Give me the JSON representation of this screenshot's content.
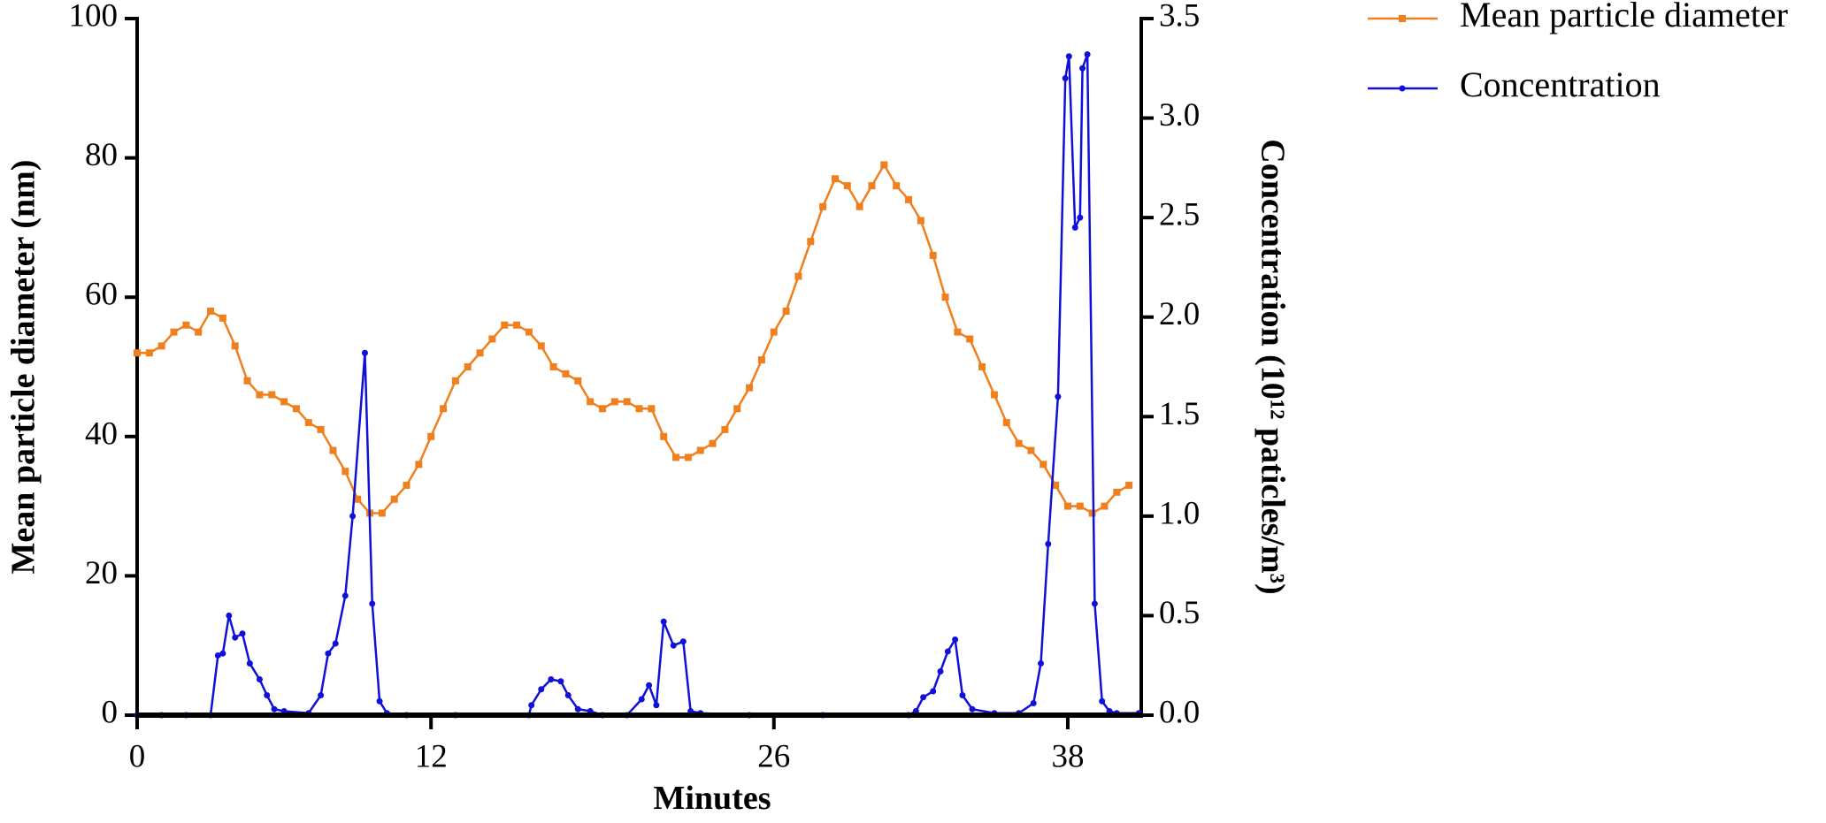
{
  "chart_data": {
    "type": "line",
    "xlabel": "Minutes",
    "ylabel": "Mean particle diameter (nm)",
    "y2label": "Concentration (10¹² paticles/m³)",
    "xlim": [
      0,
      41
    ],
    "xticks": [
      0,
      12,
      26,
      38
    ],
    "ylim": [
      0,
      100
    ],
    "yticks": [
      0,
      20,
      40,
      60,
      80,
      100
    ],
    "y2lim": [
      0,
      3.5
    ],
    "y2ticks": [
      {
        "value": 0,
        "label": "0.0"
      },
      0.5,
      {
        "value": 1,
        "label": "1.0"
      },
      1.5,
      {
        "value": 2,
        "label": "2.0"
      },
      2.5,
      {
        "value": 3,
        "label": "3.0"
      },
      3.5
    ],
    "legend": "top-right",
    "series": [
      {
        "name": "Mean particle diameter",
        "color": "#f07f1e",
        "x": [
          0,
          0.5,
          1,
          1.5,
          2,
          2.5,
          3,
          3.5,
          4,
          4.5,
          5,
          5.5,
          6,
          6.5,
          7,
          7.5,
          8,
          8.5,
          9,
          9.5,
          10,
          10.5,
          11,
          11.5,
          12,
          12.5,
          13,
          13.5,
          14,
          14.5,
          15,
          15.5,
          16,
          16.5,
          17,
          17.5,
          18,
          18.5,
          19,
          19.5,
          20,
          20.5,
          21,
          21.5,
          22,
          22.5,
          23,
          23.5,
          24,
          24.5,
          25,
          25.5,
          26,
          26.5,
          27,
          27.5,
          28,
          28.5,
          29,
          29.5,
          30,
          30.5,
          31,
          31.5,
          32,
          32.5,
          33,
          33.5,
          34,
          34.5,
          35,
          35.5,
          36,
          36.5,
          37,
          37.5,
          38,
          38.5,
          39,
          39.5,
          40,
          40.5
        ],
        "values": [
          52,
          52,
          53,
          55,
          56,
          55,
          58,
          57,
          53,
          48,
          46,
          46,
          45,
          44,
          42,
          41,
          38,
          35,
          31,
          29,
          29,
          31,
          33,
          36,
          40,
          44,
          48,
          50,
          52,
          54,
          56,
          56,
          55,
          53,
          50,
          49,
          48,
          45,
          44,
          45,
          45,
          44,
          44,
          40,
          37,
          37,
          38,
          39,
          41,
          44,
          47,
          51,
          55,
          58,
          63,
          68,
          73,
          77,
          76,
          73,
          76,
          79,
          76,
          74,
          71,
          66,
          60,
          55,
          54,
          50,
          46,
          42,
          39,
          38,
          36,
          33,
          30,
          30,
          29,
          30,
          32,
          33
        ]
      },
      {
        "name": "Concentration",
        "color": "#1010d8",
        "axis": "y2",
        "x": [
          0,
          1,
          2,
          3,
          3.3,
          3.5,
          3.75,
          4,
          4.3,
          4.6,
          5,
          5.3,
          5.6,
          6,
          7,
          7.5,
          7.8,
          8.1,
          8.5,
          8.8,
          9.3,
          9.6,
          9.9,
          10.2,
          11,
          13,
          16,
          16.1,
          16.5,
          16.9,
          17.3,
          17.6,
          18,
          18.5,
          19,
          20,
          20.6,
          20.9,
          21.2,
          21.5,
          21.9,
          22.3,
          22.6,
          23,
          25,
          28,
          31.5,
          31.8,
          32.1,
          32.5,
          32.8,
          33.1,
          33.4,
          33.7,
          34.1,
          35,
          36,
          36.6,
          36.9,
          37.2,
          37.6,
          37.9,
          38.05,
          38.3,
          38.5,
          38.6,
          38.8,
          39.1,
          39.4,
          39.7,
          40,
          40.9
        ],
        "values": [
          0,
          0,
          0,
          0,
          0.3,
          0.31,
          0.5,
          0.39,
          0.41,
          0.26,
          0.18,
          0.1,
          0.03,
          0.02,
          0.01,
          0.1,
          0.31,
          0.36,
          0.6,
          1.0,
          1.82,
          0.56,
          0.07,
          0.01,
          0,
          0,
          0,
          0.05,
          0.13,
          0.18,
          0.17,
          0.1,
          0.03,
          0.02,
          0,
          0,
          0.08,
          0.15,
          0.05,
          0.47,
          0.35,
          0.37,
          0.02,
          0.01,
          0,
          0,
          0,
          0.02,
          0.09,
          0.12,
          0.22,
          0.32,
          0.38,
          0.1,
          0.03,
          0.01,
          0.01,
          0.06,
          0.26,
          0.86,
          1.6,
          3.2,
          3.31,
          2.45,
          2.5,
          3.25,
          3.32,
          0.56,
          0.07,
          0.02,
          0.01,
          0.01
        ]
      }
    ]
  }
}
